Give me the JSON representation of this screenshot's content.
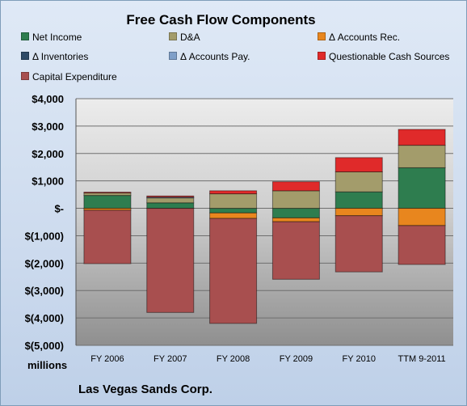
{
  "chart_data": {
    "type": "bar",
    "stacked": true,
    "title": "Free Cash Flow Components",
    "ylabel": "",
    "units_label": "millions",
    "footer": "Las Vegas Sands Corp.",
    "categories": [
      "FY 2006",
      "FY 2007",
      "FY 2008",
      "FY 2009",
      "FY 2010",
      "TTM 9-2011"
    ],
    "ylim": [
      -5000,
      4000
    ],
    "yticks": [
      4000,
      3000,
      2000,
      1000,
      0,
      -1000,
      -2000,
      -3000,
      -4000,
      -5000
    ],
    "ytick_labels": [
      "$4,000",
      "$3,000",
      "$2,000",
      "$1,000",
      "$-",
      "$(1,000)",
      "$(2,000)",
      "$(3,000)",
      "$(4,000)",
      "$(5,000)"
    ],
    "grid": true,
    "legend_position": "top",
    "series": [
      {
        "name": "Net Income",
        "color": "#2e7d4f",
        "values": [
          470,
          200,
          -170,
          -350,
          600,
          1480
        ]
      },
      {
        "name": "D&A",
        "color": "#a39c6b",
        "values": [
          90,
          180,
          530,
          640,
          730,
          820
        ]
      },
      {
        "name": "Δ Accounts Rec.",
        "color": "#e8861e",
        "values": [
          -70,
          0,
          -200,
          -140,
          -270,
          -630
        ]
      },
      {
        "name": "Δ Inventories",
        "color": "#2e4a66",
        "values": [
          0,
          0,
          0,
          0,
          0,
          0
        ]
      },
      {
        "name": "Δ Accounts Pay.",
        "color": "#7f9fc8",
        "values": [
          0,
          30,
          0,
          0,
          0,
          0
        ]
      },
      {
        "name": "Questionable Cash Sources",
        "color": "#e02a2a",
        "values": [
          30,
          40,
          110,
          330,
          520,
          580
        ]
      },
      {
        "name": "Capital Expenditure",
        "color": "#a84f4f",
        "values": [
          -1950,
          -3800,
          -3830,
          -2100,
          -2050,
          -1420
        ]
      }
    ]
  }
}
